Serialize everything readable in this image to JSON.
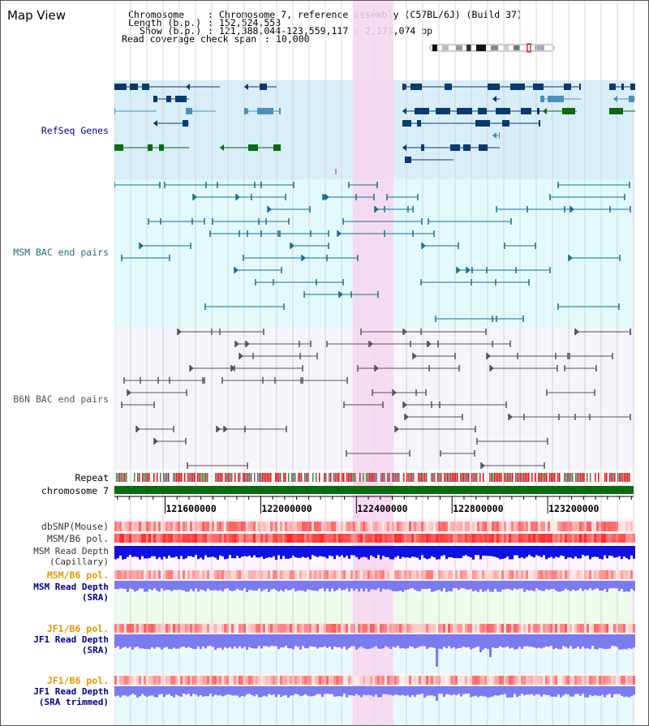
{
  "view_title": "Map View",
  "info": {
    "chromosome_key": "Chromosome",
    "chromosome_val": "Chromosome 7, reference assembly (C57BL/6J) (Build 37)",
    "length_key": "Length (b.p.)",
    "length_val": "152,524,553",
    "show_key": "Show (b.p.)",
    "show_val": "121,388,044-123,559,117 : 2,171,074 bp",
    "coverage_key": "Read coverage check span",
    "coverage_val": "10,000"
  },
  "tracks": {
    "refseq": "RefSeq Genes",
    "msm_bac": "MSM BAC end pairs",
    "b6n_bac": "B6N BAC end pairs",
    "repeat": "Repeat",
    "chromosome": "chromosome 7",
    "dbsnp": "dbSNP(Mouse)",
    "msm_b6_pol_1": "MSM/B6 pol.",
    "msm_depth_cap_1": "MSM Read Depth",
    "msm_depth_cap_2": "(Capillary)",
    "msm_b6_pol_2": "MSM/B6 pol.",
    "msm_depth_sra_1": "MSM Read Depth",
    "msm_depth_sra_2": "(SRA)",
    "jf1_pol_1": "JF1/B6 pol.",
    "jf1_depth_sra_1": "JF1 Read Depth",
    "jf1_depth_sra_2": "(SRA)",
    "jf1_pol_2": "JF1/B6 pol.",
    "jf1_depth_trim_1": "JF1 Read Depth",
    "jf1_depth_trim_2": "(SRA trimmed)"
  },
  "axis": {
    "ticks": [
      "121600000",
      "122000000",
      "122400000",
      "122800000",
      "123200000"
    ],
    "range_bp": [
      121388044,
      123559117
    ]
  },
  "highlight_bp": [
    122385000,
    122555000
  ],
  "colors": {
    "refseq_dark": "#0b3a6e",
    "refseq_mid": "#4a90b8",
    "refseq_green": "#0a6b10",
    "refseq_bg": "#d8eef8",
    "msm_color": "#1a6e8e",
    "msm_bg": "#e2fafb",
    "b6n_color": "#555555",
    "b6n_bg": "#f4f4fa",
    "highlight": "#f8d5ee",
    "chrom_green": "#0b6b12",
    "depth_blue": "#1010e0",
    "depth_light": "#7b7bf0"
  }
}
